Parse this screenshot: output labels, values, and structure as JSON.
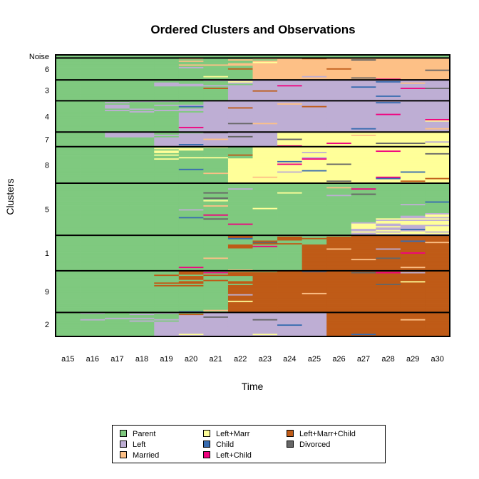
{
  "chart_data": {
    "type": "sequence-index",
    "title": "Ordered Clusters and Observations",
    "xlabel": "Time",
    "ylabel": "Clusters",
    "x": [
      "a15",
      "a16",
      "a17",
      "a18",
      "a19",
      "a20",
      "a21",
      "a22",
      "a23",
      "a24",
      "a25",
      "a26",
      "a27",
      "a28",
      "a29",
      "a30"
    ],
    "states": [
      {
        "name": "Parent",
        "color": "#7fc97f"
      },
      {
        "name": "Left",
        "color": "#beaed4"
      },
      {
        "name": "Married",
        "color": "#fdc086"
      },
      {
        "name": "Left+Marr",
        "color": "#ffff99"
      },
      {
        "name": "Child",
        "color": "#386cb0"
      },
      {
        "name": "Left+Child",
        "color": "#f0027f"
      },
      {
        "name": "Left+Marr+Child",
        "color": "#bf5b17"
      },
      {
        "name": "Divorced",
        "color": "#666666"
      }
    ],
    "clusters": [
      {
        "label": "Noise",
        "weight": 0.6,
        "base": [
          0,
          0,
          0,
          0,
          0,
          0,
          0,
          0,
          0,
          0,
          0,
          0,
          0,
          0,
          0,
          0
        ]
      },
      {
        "label": "6",
        "weight": 4.2,
        "base": [
          0,
          0,
          0,
          0,
          0,
          0,
          0,
          0,
          2,
          2,
          2,
          2,
          2,
          2,
          2,
          2
        ]
      },
      {
        "label": "3",
        "weight": 4.0,
        "base": [
          0,
          0,
          0,
          0,
          0,
          0,
          0,
          1,
          1,
          1,
          1,
          1,
          1,
          1,
          1,
          1
        ]
      },
      {
        "label": "4",
        "weight": 6.0,
        "base": [
          0,
          0,
          0,
          0,
          0,
          1,
          1,
          1,
          1,
          1,
          1,
          1,
          1,
          1,
          1,
          1
        ]
      },
      {
        "label": "7",
        "weight": 2.8,
        "base": [
          0,
          0,
          0,
          0,
          1,
          1,
          1,
          1,
          1,
          3,
          3,
          3,
          3,
          3,
          3,
          3
        ]
      },
      {
        "label": "8",
        "weight": 7.0,
        "base": [
          0,
          0,
          0,
          0,
          0,
          0,
          0,
          3,
          3,
          3,
          3,
          3,
          3,
          3,
          3,
          3
        ]
      },
      {
        "label": "5",
        "weight": 10.0,
        "base": [
          0,
          0,
          0,
          0,
          0,
          0,
          0,
          0,
          0,
          0,
          0,
          0,
          0,
          0,
          0,
          0
        ]
      },
      {
        "label": "1",
        "weight": 6.8,
        "base": [
          0,
          0,
          0,
          0,
          0,
          0,
          0,
          0,
          0,
          0,
          6,
          6,
          6,
          6,
          6,
          6
        ]
      },
      {
        "label": "9",
        "weight": 8.0,
        "base": [
          0,
          0,
          0,
          0,
          0,
          0,
          0,
          6,
          6,
          6,
          6,
          6,
          6,
          6,
          6,
          6
        ]
      },
      {
        "label": "2",
        "weight": 4.6,
        "base": [
          0,
          0,
          0,
          0,
          1,
          1,
          1,
          1,
          1,
          1,
          1,
          6,
          6,
          6,
          6,
          6
        ]
      }
    ],
    "legend_position": "bottom",
    "grid": false
  }
}
